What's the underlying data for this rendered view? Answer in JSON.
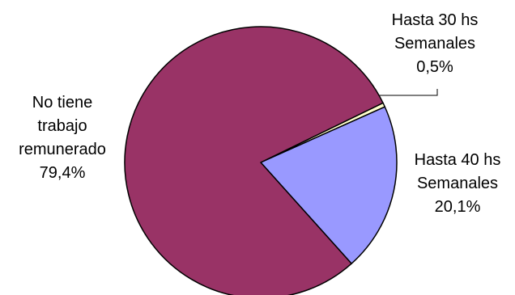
{
  "chart_data": {
    "type": "pie",
    "slices": [
      {
        "label_lines": [
          "Hasta 30 hs",
          "Semanales",
          "0,5%"
        ],
        "value": 0.5,
        "color": "#FFFFCC"
      },
      {
        "label_lines": [
          "Hasta 40 hs",
          "Semanales",
          "20,1%"
        ],
        "value": 20.1,
        "color": "#9999FF"
      },
      {
        "label_lines": [
          "No tiene",
          "trabajo",
          "remunerado",
          "79,4%"
        ],
        "value": 79.4,
        "color": "#993366"
      }
    ],
    "legend": "none",
    "start_angle_deg": 26,
    "direction": "clockwise"
  }
}
